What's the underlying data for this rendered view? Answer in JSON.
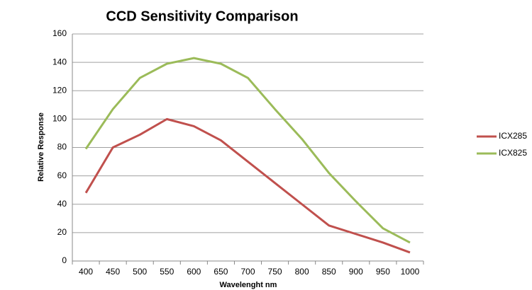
{
  "chart_data": {
    "type": "line",
    "title": "CCD Sensitivity Comparison",
    "x_label": "Wavelenght nm",
    "y_label": "Relative Response",
    "categories": [
      "400",
      "450",
      "500",
      "550",
      "600",
      "650",
      "700",
      "750",
      "800",
      "850",
      "900",
      "950",
      "1000"
    ],
    "series": [
      {
        "name": "ICX285",
        "color": "#c0504d",
        "values": [
          48,
          80,
          89,
          100,
          95,
          85,
          70,
          55,
          40,
          25,
          19,
          13,
          6
        ]
      },
      {
        "name": "ICX825",
        "color": "#9bbb59",
        "values": [
          79,
          107,
          129,
          139,
          143,
          139,
          129,
          107,
          86,
          62,
          42,
          23,
          13
        ]
      }
    ],
    "ylim": [
      0,
      160
    ],
    "yticks": [
      0,
      20,
      40,
      60,
      80,
      100,
      120,
      140,
      160
    ],
    "grid": true,
    "legend": "right"
  }
}
